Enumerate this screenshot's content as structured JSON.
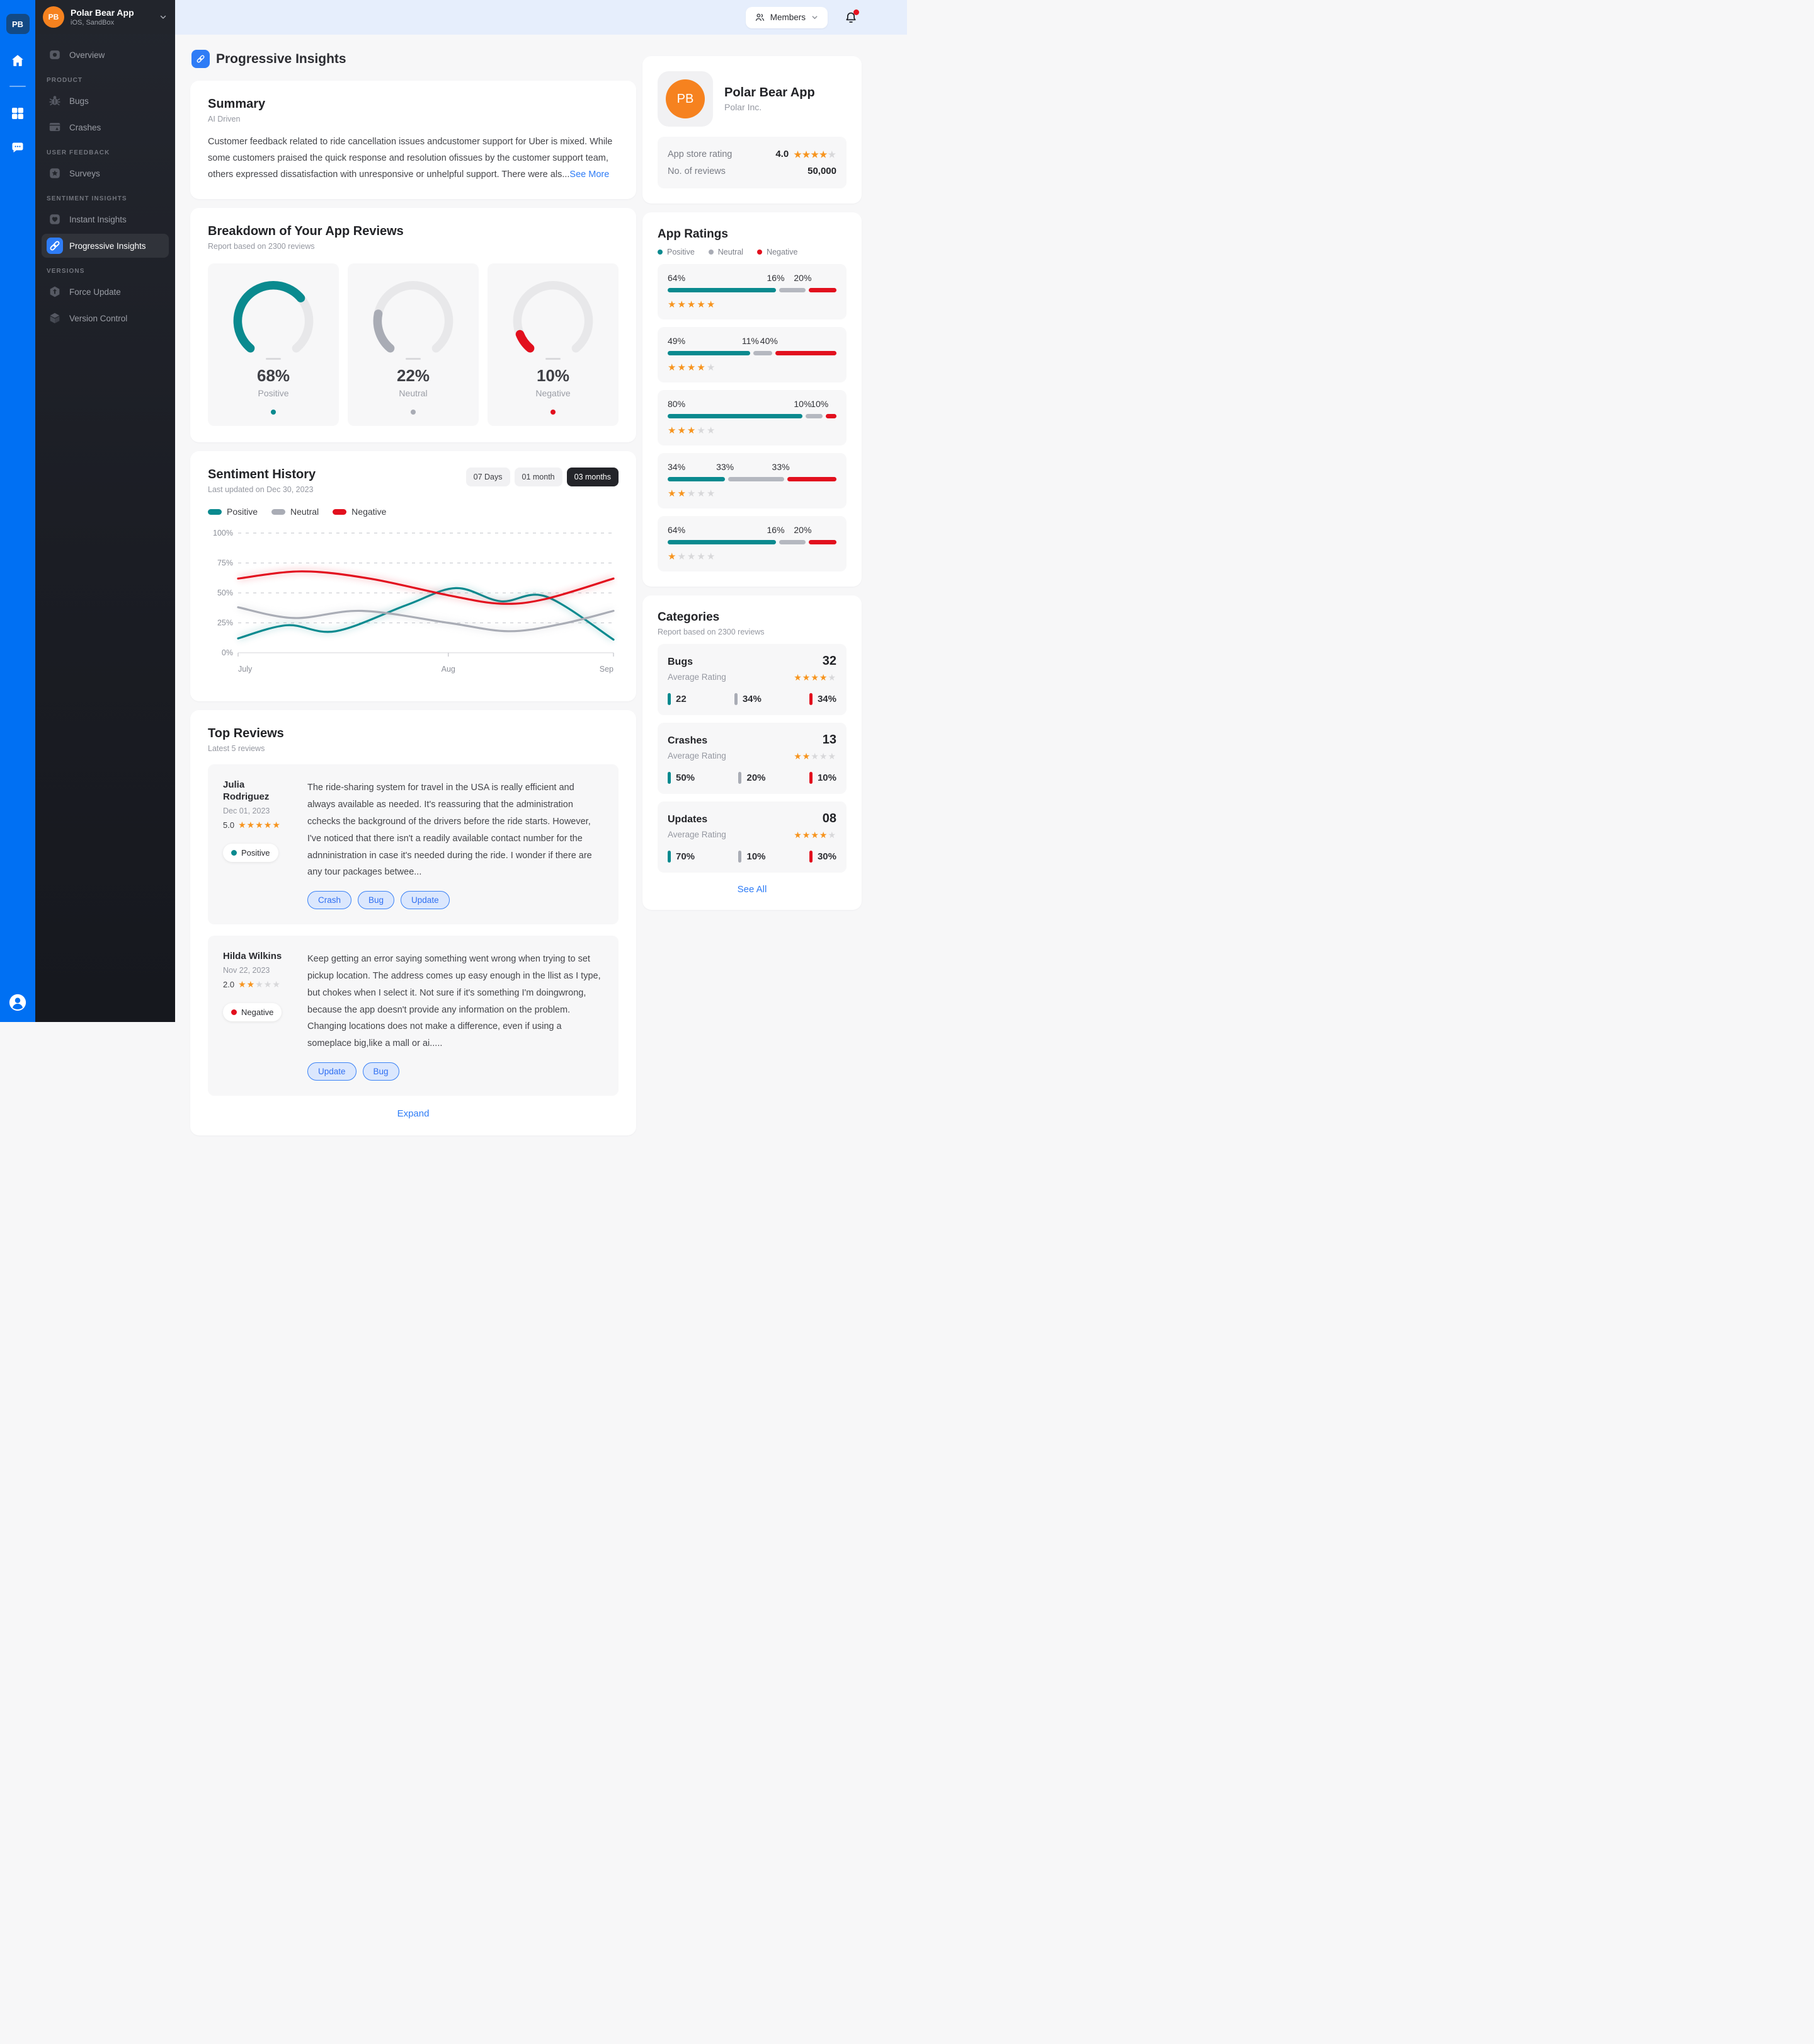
{
  "colors": {
    "positive": "#0A8A8F",
    "neutral": "#A9ACB5",
    "neutral_bar": "#B5B8C0",
    "negative": "#E2101E",
    "accent": "#2E7CF6",
    "star": "#F7941E",
    "star_off": "#D8D8DA"
  },
  "rail": {
    "badge": "PB",
    "icons": [
      "home-icon",
      "apps-grid-icon",
      "chat-icon"
    ],
    "avatar": "user-avatar-icon"
  },
  "sidebar": {
    "app_name": "Polar Bear App",
    "app_sub": "iOS, SandBox",
    "avatar_initials": "PB",
    "sections": [
      {
        "label": "",
        "items": [
          {
            "label": "Overview",
            "icon": "overview",
            "active": false
          }
        ]
      },
      {
        "label": "PRODUCT",
        "items": [
          {
            "label": "Bugs",
            "icon": "bugs",
            "active": false
          },
          {
            "label": "Crashes",
            "icon": "crashes",
            "active": false
          }
        ]
      },
      {
        "label": "USER FEEDBACK",
        "items": [
          {
            "label": "Surveys",
            "icon": "surveys",
            "active": false
          }
        ]
      },
      {
        "label": "SENTIMENT INSIGHTS",
        "items": [
          {
            "label": "Instant Insights",
            "icon": "instant",
            "active": false
          },
          {
            "label": "Progressive Insights",
            "icon": "progressive",
            "active": true
          }
        ]
      },
      {
        "label": "VERSIONS",
        "items": [
          {
            "label": "Force Update",
            "icon": "force-update",
            "active": false
          },
          {
            "label": "Version Control",
            "icon": "version-control",
            "active": false
          }
        ]
      }
    ]
  },
  "topbar": {
    "members_label": "Members"
  },
  "page": {
    "title": "Progressive Insights"
  },
  "summary": {
    "title": "Summary",
    "subtitle": "AI Driven",
    "text": "Customer feedback related to ride cancellation issues andcustomer support for Uber is mixed. While some customers praised the quick response and resolution ofissues by the customer support team, others expressed dissatisfaction with unresponsive or unhelpful support. There were als...",
    "see_more": "See More"
  },
  "breakdown": {
    "title": "Breakdown of Your App Reviews",
    "subtitle": "Report based on 2300 reviews",
    "gauges": [
      {
        "value": 68,
        "display": "68%",
        "label": "Positive",
        "color_key": "positive"
      },
      {
        "value": 22,
        "display": "22%",
        "label": "Neutral",
        "color_key": "neutral"
      },
      {
        "value": 10,
        "display": "10%",
        "label": "Negative",
        "color_key": "negative"
      }
    ]
  },
  "sentiment_history": {
    "title": "Sentiment History",
    "subtitle": "Last updated on Dec 30, 2023",
    "ranges": [
      "07 Days",
      "01 month",
      "03 months"
    ],
    "active_range": "03 months",
    "legend": [
      {
        "label": "Positive",
        "key": "positive"
      },
      {
        "label": "Neutral",
        "key": "neutral"
      },
      {
        "label": "Negative",
        "key": "negative"
      }
    ],
    "chart_data": {
      "type": "line",
      "ylim": [
        0,
        100
      ],
      "grid": true,
      "legend_position": "top-left",
      "y_ticks": [
        {
          "label": "0%",
          "v": 0
        },
        {
          "label": "25%",
          "v": 25
        },
        {
          "label": "50%",
          "v": 50
        },
        {
          "label": "75%",
          "v": 75
        },
        {
          "label": "100%",
          "v": 100
        }
      ],
      "x_ticks": [
        {
          "label": "July",
          "pos": 0
        },
        {
          "label": "Aug",
          "pos": 0.56
        },
        {
          "label": "Sep",
          "pos": 1
        }
      ],
      "series": [
        {
          "name": "Positive",
          "key": "positive",
          "points": [
            [
              0,
              12
            ],
            [
              0.13,
              23
            ],
            [
              0.26,
              18
            ],
            [
              0.45,
              40
            ],
            [
              0.58,
              54
            ],
            [
              0.7,
              43
            ],
            [
              0.82,
              47
            ],
            [
              1,
              11
            ]
          ]
        },
        {
          "name": "Neutral",
          "key": "neutral",
          "points": [
            [
              0,
              38
            ],
            [
              0.15,
              29
            ],
            [
              0.33,
              35
            ],
            [
              0.56,
              25
            ],
            [
              0.72,
              18
            ],
            [
              0.86,
              24
            ],
            [
              1,
              35
            ]
          ]
        },
        {
          "name": "Negative",
          "key": "negative",
          "points": [
            [
              0,
              62
            ],
            [
              0.17,
              68
            ],
            [
              0.35,
              62
            ],
            [
              0.56,
              48
            ],
            [
              0.7,
              41
            ],
            [
              0.82,
              45
            ],
            [
              1,
              62
            ]
          ]
        }
      ]
    }
  },
  "top_reviews": {
    "title": "Top Reviews",
    "subtitle": "Latest 5 reviews",
    "expand_label": "Expand",
    "reviews": [
      {
        "name": "Julia Rodriguez",
        "date": "Dec 01, 2023",
        "rating": "5.0",
        "stars": 5,
        "sentiment": "Positive",
        "sentiment_key": "positive",
        "text": "The ride-sharing system for travel in the USA is really efficient and always available as needed. It's reassuring that the administration cchecks the background of the drivers before the ride starts. However, I've noticed that there isn't a readily available contact number for the adnninistration in case it's needed during the ride. I wonder if there are any tour packages betwee...",
        "tags": [
          "Crash",
          "Bug",
          "Update"
        ]
      },
      {
        "name": "Hilda Wilkins",
        "date": "Nov 22, 2023",
        "rating": "2.0",
        "stars": 2,
        "sentiment": "Negative",
        "sentiment_key": "negative",
        "text": "Keep getting an error saying something went wrong when trying to set pickup location. The address comes up easy enough in the llist as I type, but chokes when I select it. Not sure if it's something I'm doingwrong, because the app doesn't provide any information on the problem. Changing locations does not make a difference, even if using a someplace big,like a mall or ai.....",
        "tags": [
          "Update",
          "Bug"
        ]
      }
    ]
  },
  "app_card": {
    "initials": "PB",
    "name": "Polar Bear App",
    "company": "Polar Inc.",
    "rating_label": "App store rating",
    "rating_value": "4.0",
    "rating_stars": 4,
    "reviews_label": "No. of reviews",
    "reviews_value": "50,000"
  },
  "app_ratings": {
    "title": "App Ratings",
    "legend": [
      {
        "label": "Positive",
        "key": "positive"
      },
      {
        "label": "Neutral",
        "key": "neutral"
      },
      {
        "label": "Negative",
        "key": "negative"
      }
    ],
    "rows": [
      {
        "values": [
          64,
          16,
          20
        ],
        "labels": [
          "64%",
          "16%",
          "20%"
        ],
        "stars": 5
      },
      {
        "values": [
          49,
          11,
          40
        ],
        "labels": [
          "49%",
          "11%",
          "40%"
        ],
        "stars": 4
      },
      {
        "values": [
          80,
          10,
          10
        ],
        "labels": [
          "80%",
          "10%",
          "10%"
        ],
        "stars": 3
      },
      {
        "values": [
          34,
          33,
          33
        ],
        "labels": [
          "34%",
          "33%",
          "33%"
        ],
        "stars": 2
      },
      {
        "values": [
          64,
          16,
          20
        ],
        "labels": [
          "64%",
          "16%",
          "20%"
        ],
        "stars": 1
      }
    ]
  },
  "categories": {
    "title": "Categories",
    "subtitle": "Report based on 2300 reviews",
    "see_all": "See All",
    "avg_label": "Average Rating",
    "items": [
      {
        "name": "Bugs",
        "count": "32",
        "stars": 4,
        "stats": [
          {
            "label": "22",
            "key": "positive"
          },
          {
            "label": "34%",
            "key": "neutral"
          },
          {
            "label": "34%",
            "key": "negative"
          }
        ]
      },
      {
        "name": "Crashes",
        "count": "13",
        "stars": 2,
        "stats": [
          {
            "label": "50%",
            "key": "positive"
          },
          {
            "label": "20%",
            "key": "neutral"
          },
          {
            "label": "10%",
            "key": "negative"
          }
        ]
      },
      {
        "name": "Updates",
        "count": "08",
        "stars": 4,
        "stats": [
          {
            "label": "70%",
            "key": "positive"
          },
          {
            "label": "10%",
            "key": "neutral"
          },
          {
            "label": "30%",
            "key": "negative"
          }
        ]
      }
    ]
  }
}
